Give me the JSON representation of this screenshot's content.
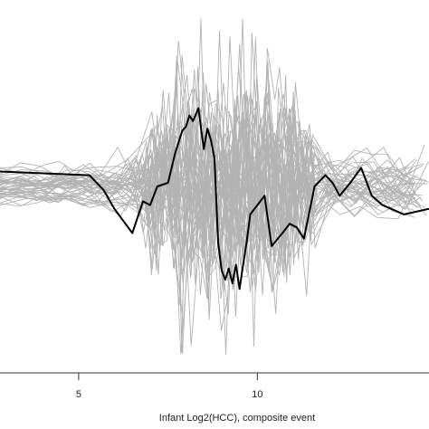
{
  "chart_data": {
    "type": "line",
    "title": "",
    "xlabel": "Infant Log2(HCC), composite event",
    "ylabel": "",
    "xlim": [
      2.8,
      14.8
    ],
    "ylim": [
      -1.0,
      1.0
    ],
    "x_ticks": [
      5,
      10
    ],
    "x_tick_labels": [
      "5",
      "10"
    ],
    "grid": false,
    "legend": "none",
    "colors": {
      "background_series": "#b3b3b3",
      "highlight_series": "#000000",
      "axis": "#333333"
    },
    "background_series_count": 45,
    "highlight_series": {
      "x": [
        2.8,
        5.3,
        5.7,
        6.0,
        6.5,
        6.8,
        7.0,
        7.2,
        7.5,
        7.7,
        7.9,
        8.0,
        8.1,
        8.2,
        8.35,
        8.5,
        8.6,
        8.7,
        8.8,
        8.9,
        9.0,
        9.1,
        9.2,
        9.3,
        9.4,
        9.5,
        9.6,
        9.7,
        9.8,
        10.0,
        10.2,
        10.4,
        10.7,
        10.9,
        11.1,
        11.3,
        11.6,
        11.9,
        12.1,
        12.3,
        12.6,
        12.9,
        13.2,
        13.5,
        14.1,
        14.8
      ],
      "y": [
        0.08,
        0.06,
        -0.02,
        -0.12,
        -0.25,
        -0.08,
        -0.1,
        0.0,
        0.02,
        0.18,
        0.3,
        0.32,
        0.38,
        0.35,
        0.42,
        0.2,
        0.31,
        0.25,
        0.15,
        -0.3,
        -0.45,
        -0.5,
        -0.44,
        -0.52,
        -0.42,
        -0.55,
        -0.42,
        -0.3,
        -0.15,
        -0.1,
        -0.05,
        -0.32,
        -0.25,
        -0.2,
        -0.22,
        -0.28,
        0.0,
        0.06,
        0.02,
        -0.05,
        0.02,
        0.1,
        -0.05,
        -0.1,
        -0.15,
        -0.12
      ]
    }
  }
}
